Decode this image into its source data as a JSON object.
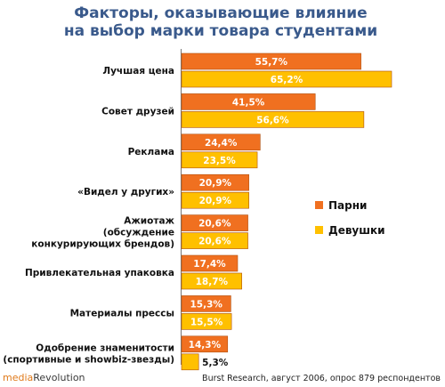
{
  "chart_data": {
    "type": "bar",
    "orientation": "horizontal",
    "title_lines": [
      "Факторы, оказывающие влияние",
      "на выбор марки товара студентами"
    ],
    "categories": [
      [
        "Лучшая цена"
      ],
      [
        "Совет друзей"
      ],
      [
        "Реклама"
      ],
      [
        "«Видел у других»"
      ],
      [
        "Ажиотаж",
        "(обсуждение",
        "конкурирующих брендов)"
      ],
      [
        "Привлекательная упаковка"
      ],
      [
        "Материалы прессы"
      ],
      [
        "Одобрение знаменитости",
        "(спортивные и showbiz-звезды)"
      ]
    ],
    "series": [
      {
        "name": "Парни",
        "color": "#f07020",
        "values": [
          55.7,
          41.5,
          24.4,
          20.9,
          20.6,
          17.4,
          15.3,
          14.3
        ],
        "labels": [
          "55,7%",
          "41,5%",
          "24,4%",
          "20,9%",
          "20,6%",
          "17,4%",
          "15,3%",
          "14,3%"
        ]
      },
      {
        "name": "Девушки",
        "color": "#ffc000",
        "values": [
          65.2,
          56.6,
          23.5,
          20.9,
          20.6,
          18.7,
          15.5,
          5.3
        ],
        "labels": [
          "65,2%",
          "56,6%",
          "23,5%",
          "20,9%",
          "20,6%",
          "18,7%",
          "15,5%",
          "5,3%"
        ]
      }
    ],
    "xlim": [
      0,
      65.2
    ],
    "legend_position": "right",
    "grid": false,
    "source": "Burst Research, август 2006, опрос 879 респондентов",
    "logo": {
      "part1": "media",
      "part2": "Revolution"
    }
  }
}
